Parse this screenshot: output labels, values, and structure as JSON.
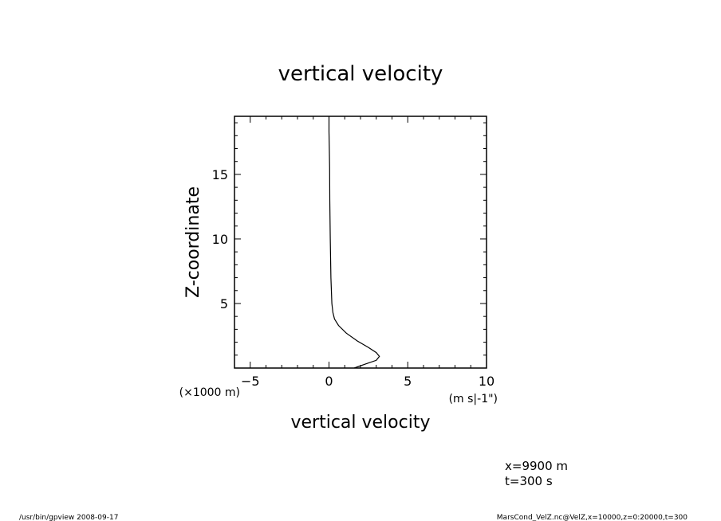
{
  "chart_data": {
    "type": "line",
    "title": "vertical velocity",
    "xlabel": "vertical velocity",
    "x_units": "(m s|-1\")",
    "ylabel": "Z-coordinate",
    "y_units": "(×1000 m)",
    "xlim": [
      -6,
      10
    ],
    "ylim": [
      0,
      19.5
    ],
    "x_ticks": [
      -5,
      0,
      5,
      10
    ],
    "y_ticks": [
      5,
      10,
      15
    ],
    "grid": false,
    "series": [
      {
        "x": [
          1.6,
          2.3,
          3.0,
          3.2,
          3.0,
          2.5,
          1.8,
          1.1,
          0.6,
          0.35,
          0.25,
          0.18,
          0.12,
          0.08,
          0.05,
          0.04,
          0.02,
          0.0,
          0.0
        ],
        "y": [
          0.0,
          0.3,
          0.6,
          0.9,
          1.2,
          1.6,
          2.1,
          2.7,
          3.3,
          3.8,
          4.3,
          5.0,
          7.0,
          10.0,
          13.0,
          15.5,
          17.0,
          18.3,
          19.5
        ]
      }
    ]
  },
  "annotations": {
    "position": "x=9900 m",
    "time": "t=300 s"
  },
  "footer": {
    "left": "/usr/bin/gpview   2008-09-17",
    "right": "MarsCond_VelZ.nc@VelZ,x=10000,z=0:20000,t=300"
  }
}
